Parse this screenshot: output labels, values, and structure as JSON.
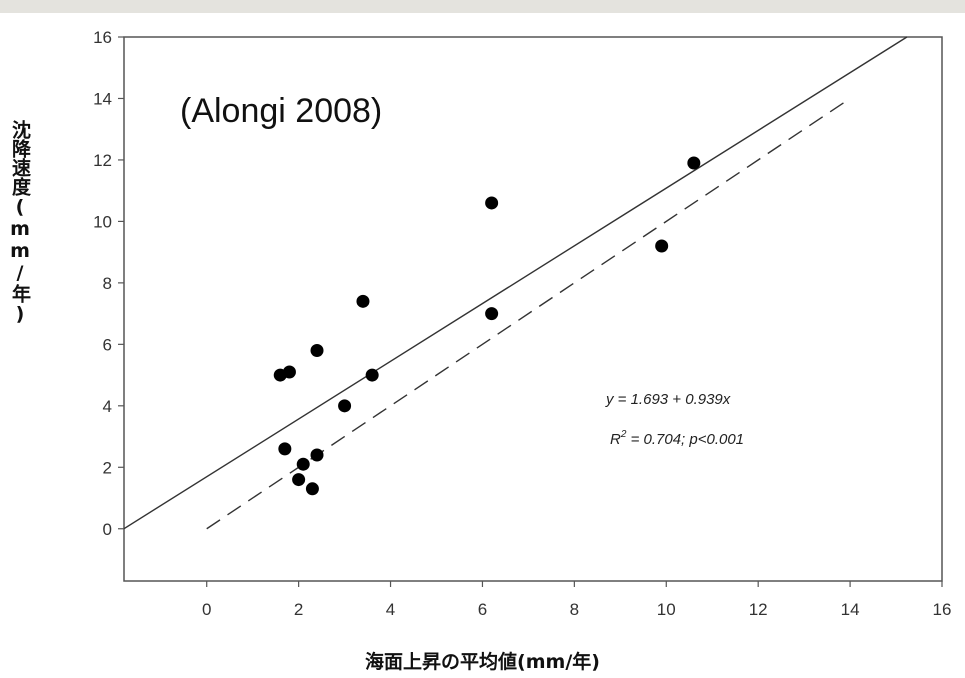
{
  "chart_data": {
    "type": "scatter",
    "title": "",
    "annotation": "(Alongi 2008)",
    "xlabel": "海面上昇の平均値(mm/年)",
    "ylabel": "沈降速度(mm/年)",
    "xlim": [
      -1.8,
      16
    ],
    "ylim": [
      -1.7,
      16
    ],
    "xticks": [
      0,
      2,
      4,
      6,
      8,
      10,
      12,
      14,
      16
    ],
    "yticks": [
      0,
      2,
      4,
      6,
      8,
      10,
      12,
      14,
      16
    ],
    "grid": false,
    "points": [
      {
        "x": 1.6,
        "y": 5.0
      },
      {
        "x": 1.8,
        "y": 5.1
      },
      {
        "x": 2.4,
        "y": 5.8
      },
      {
        "x": 1.7,
        "y": 2.6
      },
      {
        "x": 2.1,
        "y": 2.1
      },
      {
        "x": 2.0,
        "y": 1.6
      },
      {
        "x": 2.3,
        "y": 1.3
      },
      {
        "x": 2.4,
        "y": 2.4
      },
      {
        "x": 3.0,
        "y": 4.0
      },
      {
        "x": 3.4,
        "y": 7.4
      },
      {
        "x": 3.6,
        "y": 5.0
      },
      {
        "x": 6.2,
        "y": 10.6
      },
      {
        "x": 6.2,
        "y": 7.0
      },
      {
        "x": 9.9,
        "y": 9.2
      },
      {
        "x": 10.6,
        "y": 11.9
      }
    ],
    "fit_line": {
      "intercept": 1.693,
      "slope": 0.939,
      "style": "solid"
    },
    "reference_line": {
      "from": [
        0,
        0
      ],
      "to": [
        14,
        14
      ],
      "style": "dashed"
    },
    "equation": "y = 1.693 + 0.939x",
    "r2_label": "R",
    "r2_superscript": "2",
    "r2_text": " = 0.704; p<0.001"
  }
}
